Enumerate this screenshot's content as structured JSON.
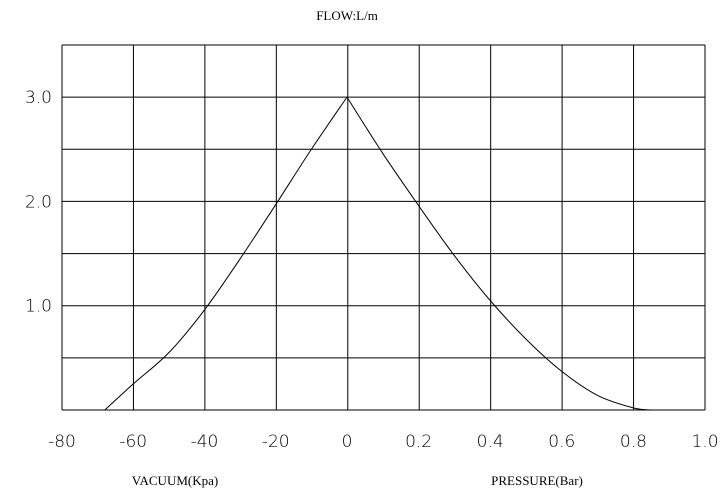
{
  "chart_data": {
    "type": "line",
    "title": "FLOW:L/m",
    "y_ticks": [
      "3.0",
      "2.0",
      "1.0"
    ],
    "y_tick_values": [
      3.0,
      2.0,
      1.0
    ],
    "ylim": [
      0,
      3.5
    ],
    "grid": true,
    "vacuum_axis": {
      "label": "VACUUM(Kpa)",
      "ticks": [
        "-80",
        "-60",
        "-40",
        "-20",
        "0"
      ],
      "tick_values": [
        -80,
        -60,
        -40,
        -20,
        0
      ]
    },
    "pressure_axis": {
      "label": "PRESSURE(Bar)",
      "ticks": [
        "0.2",
        "0.4",
        "0.6",
        "0.8",
        "1.0"
      ],
      "tick_values": [
        0.2,
        0.4,
        0.6,
        0.8,
        1.0
      ]
    },
    "series": [
      {
        "axis": "vacuum",
        "points": [
          [
            -68,
            0
          ],
          [
            -60,
            0.25
          ],
          [
            -50,
            0.55
          ],
          [
            -40,
            0.96
          ],
          [
            -30,
            1.45
          ],
          [
            -20,
            1.97
          ],
          [
            -10,
            2.5
          ],
          [
            0,
            3.0
          ]
        ]
      },
      {
        "axis": "pressure",
        "points": [
          [
            0,
            3.0
          ],
          [
            0.1,
            2.46
          ],
          [
            0.2,
            1.96
          ],
          [
            0.3,
            1.48
          ],
          [
            0.4,
            1.05
          ],
          [
            0.5,
            0.68
          ],
          [
            0.6,
            0.37
          ],
          [
            0.7,
            0.14
          ],
          [
            0.8,
            0.02
          ],
          [
            0.85,
            0
          ]
        ]
      }
    ]
  }
}
